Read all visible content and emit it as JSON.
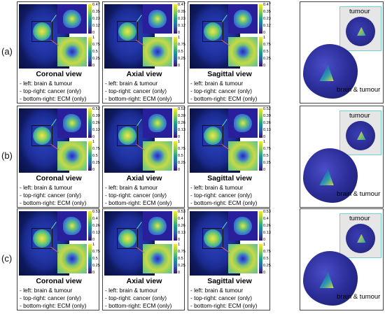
{
  "rows": [
    {
      "label": "(a)",
      "panels": [
        {
          "title": "Coronal view",
          "ticks_top": [
            "0.47",
            "0.35",
            "0.23",
            "0.12",
            "0"
          ],
          "ticks_bot": [
            "1",
            "0.75",
            "0.5",
            "0.25",
            "0"
          ]
        },
        {
          "title": "Axial view",
          "ticks_top": [
            "0.47",
            "0.35",
            "0.23",
            "0.12",
            "0"
          ],
          "ticks_bot": [
            "1",
            "0.75",
            "0.5",
            "0.25",
            "0"
          ]
        },
        {
          "title": "Sagittal view",
          "ticks_top": [
            "0.47",
            "0.35",
            "0.23",
            "0.12",
            "0"
          ],
          "ticks_bot": [
            "1",
            "0.75",
            "0.5",
            "0.25",
            "0"
          ]
        }
      ]
    },
    {
      "label": "(b)",
      "panels": [
        {
          "title": "Coronal view",
          "ticks_top": [
            "0.52",
            "0.39",
            "0.26",
            "0.13",
            "0"
          ],
          "ticks_bot": [
            "1",
            "0.75",
            "0.5",
            "0.25",
            "0"
          ]
        },
        {
          "title": "Axial view",
          "ticks_top": [
            "0.52",
            "0.39",
            "0.26",
            "0.13",
            "0"
          ],
          "ticks_bot": [
            "1",
            "0.75",
            "0.5",
            "0.25",
            "0"
          ]
        },
        {
          "title": "Sagittal view",
          "ticks_top": [
            "0.52",
            "0.39",
            "0.26",
            "0.13",
            "0"
          ],
          "ticks_bot": [
            "1",
            "0.75",
            "0.5",
            "0.25",
            "0"
          ]
        }
      ]
    },
    {
      "label": "(c)",
      "panels": [
        {
          "title": "Coronal view",
          "ticks_top": [
            "0.53",
            "0.4",
            "0.26",
            "0.13",
            "0"
          ],
          "ticks_bot": [
            "1",
            "0.75",
            "0.5",
            "0.25",
            "0"
          ]
        },
        {
          "title": "Axial view",
          "ticks_top": [
            "0.53",
            "0.4",
            "0.26",
            "0.13",
            "0"
          ],
          "ticks_bot": [
            "1",
            "0.75",
            "0.5",
            "0.25",
            "0"
          ]
        },
        {
          "title": "Sagittal view",
          "ticks_top": [
            "0.53",
            "0.4",
            "0.26",
            "0.13",
            "0"
          ],
          "ticks_bot": [
            "1",
            "0.75",
            "0.5",
            "0.25",
            "0"
          ]
        }
      ]
    }
  ],
  "caption": [
    "- left: brain & tumour",
    "- top-right: cancer (only)",
    "- bottom-right: ECM (only)"
  ],
  "label_tumour": "tumour",
  "label_brain": "brain & tumour"
}
